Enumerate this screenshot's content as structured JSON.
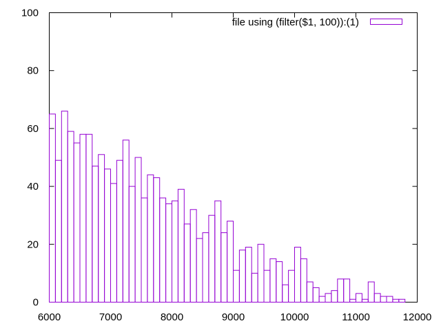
{
  "chart_data": {
    "type": "bar",
    "style": "histogram-steps",
    "bin_width": 100,
    "xlim": [
      6000,
      12000
    ],
    "ylim": [
      0,
      100
    ],
    "xticks": [
      6000,
      7000,
      8000,
      9000,
      10000,
      11000,
      12000
    ],
    "yticks": [
      0,
      20,
      40,
      60,
      80,
      100
    ],
    "grid": false,
    "legend_position": "top-right",
    "color": "#9400d3",
    "series": [
      {
        "name": "file using (filter($1, 100)):(1)",
        "x": [
          6000,
          6100,
          6200,
          6300,
          6400,
          6500,
          6600,
          6700,
          6800,
          6900,
          7000,
          7100,
          7200,
          7300,
          7400,
          7500,
          7600,
          7700,
          7800,
          7900,
          8000,
          8100,
          8200,
          8300,
          8400,
          8500,
          8600,
          8700,
          8800,
          8900,
          9000,
          9100,
          9200,
          9300,
          9400,
          9500,
          9600,
          9700,
          9800,
          9900,
          10000,
          10100,
          10200,
          10300,
          10400,
          10500,
          10600,
          10700,
          10800,
          10900,
          11000,
          11100,
          11200,
          11300,
          11400,
          11500,
          11600,
          11700
        ],
        "values": [
          65,
          49,
          66,
          59,
          55,
          58,
          58,
          47,
          51,
          46,
          41,
          49,
          56,
          40,
          50,
          36,
          44,
          43,
          36,
          34,
          35,
          39,
          27,
          32,
          22,
          24,
          30,
          35,
          24,
          28,
          11,
          18,
          19,
          10,
          20,
          11,
          15,
          14,
          6,
          11,
          19,
          15,
          7,
          5,
          2,
          3,
          4,
          8,
          8,
          1,
          3,
          1,
          7,
          3,
          2,
          2,
          1,
          1
        ]
      }
    ]
  }
}
